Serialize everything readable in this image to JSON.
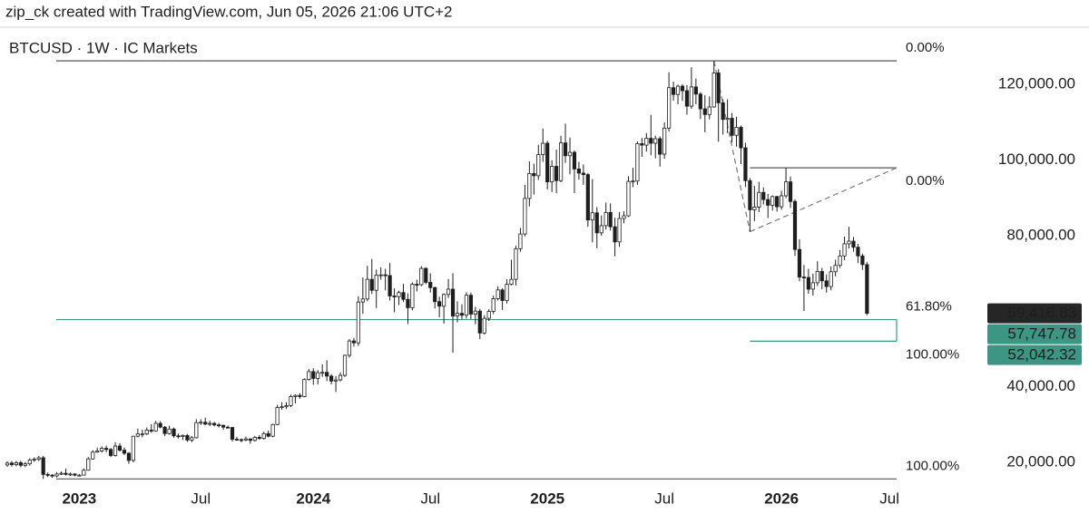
{
  "header": "zip_ck created with TradingView.com, Jun 05, 2026 21:06 UTC+2",
  "chart_data": {
    "type": "candlestick",
    "title": "BTCUSD · 1W · IC Markets",
    "categories": [
      null,
      null,
      null,
      null,
      null,
      null,
      null,
      null,
      null,
      null,
      null,
      null,
      null,
      null,
      null,
      null,
      "2023",
      null,
      null,
      null,
      null,
      null,
      null,
      null,
      null,
      null,
      null,
      null,
      null,
      null,
      null,
      null,
      null,
      null,
      null,
      null,
      null,
      null,
      null,
      null,
      null,
      null,
      null,
      "Jul",
      null,
      null,
      null,
      null,
      null,
      null,
      null,
      null,
      null,
      null,
      null,
      null,
      null,
      null,
      null,
      null,
      null,
      null,
      null,
      null,
      null,
      null,
      null,
      null,
      "2024",
      null,
      null,
      null,
      null,
      null,
      null,
      null,
      null,
      null,
      null,
      null,
      null,
      null,
      null,
      null,
      null,
      null,
      null,
      null,
      null,
      null,
      null,
      null,
      null,
      null,
      "Jul",
      null,
      null,
      null,
      null,
      null,
      null,
      null,
      null,
      null,
      null,
      null,
      null,
      null,
      null,
      null,
      null,
      null,
      null,
      null,
      null,
      null,
      null,
      null,
      null,
      null,
      "2025",
      null,
      null,
      null,
      null,
      null,
      null,
      null,
      null,
      null,
      null,
      null,
      null,
      null,
      null,
      null,
      null,
      null,
      null,
      null,
      null,
      null,
      null,
      null,
      null,
      null,
      "Jul",
      null,
      null,
      null,
      null,
      null,
      null,
      null,
      null,
      null,
      null,
      null,
      null,
      null,
      null,
      null,
      null,
      null,
      null,
      null,
      null,
      null,
      null,
      null,
      null,
      null,
      "2026",
      null,
      null,
      null,
      null,
      null,
      null,
      null,
      null,
      null,
      null,
      null,
      null,
      null,
      null,
      null,
      null,
      null,
      null,
      null,
      null,
      null,
      null,
      null,
      "Jul"
    ],
    "ohlc": [
      [
        19300,
        20300,
        18800,
        19800
      ],
      [
        19800,
        20300,
        18900,
        19400
      ],
      [
        19400,
        20400,
        18900,
        19900
      ],
      [
        19900,
        20400,
        18700,
        19200
      ],
      [
        19200,
        20100,
        18700,
        19600
      ],
      [
        19600,
        21100,
        19100,
        20600
      ],
      [
        20600,
        21300,
        20100,
        20800
      ],
      [
        20800,
        21700,
        20300,
        21200
      ],
      [
        21200,
        21700,
        15600,
        16800
      ],
      [
        16800,
        17300,
        16100,
        16600
      ],
      [
        16600,
        16900,
        15900,
        16400
      ],
      [
        16400,
        17400,
        16000,
        16900
      ],
      [
        16900,
        17600,
        16600,
        17100
      ],
      [
        17100,
        18300,
        16500,
        16800
      ],
      [
        16800,
        17300,
        16400,
        16900
      ],
      [
        16900,
        17100,
        16300,
        16600
      ],
      [
        16600,
        16900,
        16300,
        16600
      ],
      [
        16600,
        18400,
        16500,
        17900
      ],
      [
        17900,
        21400,
        17800,
        20900
      ],
      [
        20900,
        23200,
        20700,
        22700
      ],
      [
        22700,
        23900,
        22500,
        23000
      ],
      [
        23000,
        24200,
        22600,
        23700
      ],
      [
        23700,
        24400,
        22700,
        23400
      ],
      [
        23400,
        23800,
        21400,
        21800
      ],
      [
        21800,
        25300,
        21500,
        24300
      ],
      [
        24300,
        25100,
        22800,
        23200
      ],
      [
        23200,
        23900,
        21900,
        22400
      ],
      [
        22400,
        22700,
        19600,
        20500
      ],
      [
        20500,
        27000,
        20000,
        26900
      ],
      [
        26900,
        28900,
        26600,
        27500
      ],
      [
        27500,
        28600,
        26600,
        27500
      ],
      [
        27500,
        29200,
        27200,
        28500
      ],
      [
        28500,
        30100,
        27800,
        28300
      ],
      [
        28300,
        31000,
        28100,
        30300
      ],
      [
        30300,
        30900,
        29000,
        29300
      ],
      [
        29300,
        29600,
        26900,
        27600
      ],
      [
        27600,
        29700,
        27300,
        28800
      ],
      [
        28800,
        29200,
        26500,
        27000
      ],
      [
        27000,
        27600,
        26300,
        26800
      ],
      [
        26800,
        27400,
        25900,
        27100
      ],
      [
        27100,
        27500,
        25400,
        25900
      ],
      [
        25900,
        27000,
        25300,
        26500
      ],
      [
        26500,
        31400,
        26300,
        30500
      ],
      [
        30500,
        31400,
        29900,
        30600
      ],
      [
        30600,
        31800,
        29800,
        30100
      ],
      [
        30100,
        31000,
        29600,
        30300
      ],
      [
        30300,
        30700,
        29500,
        29900
      ],
      [
        29900,
        30400,
        29200,
        29800
      ],
      [
        29800,
        29900,
        28600,
        29300
      ],
      [
        29300,
        29700,
        28900,
        29200
      ],
      [
        29200,
        29400,
        25500,
        26100
      ],
      [
        26100,
        26700,
        25700,
        26000
      ],
      [
        26000,
        26300,
        25300,
        25900
      ],
      [
        25900,
        26800,
        25600,
        26200
      ],
      [
        26200,
        26300,
        24900,
        25800
      ],
      [
        25800,
        27000,
        25500,
        26600
      ],
      [
        26600,
        27200,
        26000,
        26300
      ],
      [
        26300,
        28100,
        26000,
        27600
      ],
      [
        27600,
        28400,
        26600,
        26900
      ],
      [
        26900,
        30200,
        26600,
        30000
      ],
      [
        30000,
        35200,
        29800,
        34500
      ],
      [
        34500,
        35900,
        33900,
        34700
      ],
      [
        34700,
        35900,
        34100,
        35000
      ],
      [
        35000,
        37900,
        34600,
        37400
      ],
      [
        37400,
        38000,
        35600,
        37700
      ],
      [
        37700,
        38300,
        36800,
        37400
      ],
      [
        37400,
        42200,
        37200,
        41900
      ],
      [
        41900,
        44700,
        41600,
        44000
      ],
      [
        44000,
        44900,
        40500,
        42200
      ],
      [
        42200,
        44400,
        40600,
        43700
      ],
      [
        43700,
        45900,
        42600,
        43800
      ],
      [
        43800,
        47000,
        41500,
        42800
      ],
      [
        42800,
        43300,
        40600,
        41500
      ],
      [
        41500,
        42800,
        38600,
        41800
      ],
      [
        41800,
        43800,
        41400,
        43000
      ],
      [
        43000,
        48500,
        42600,
        48300
      ],
      [
        48300,
        52600,
        47700,
        52100
      ],
      [
        52100,
        52900,
        50600,
        51600
      ],
      [
        51600,
        63900,
        50800,
        62400
      ],
      [
        62400,
        68900,
        59300,
        63200
      ],
      [
        63200,
        72000,
        62600,
        68400
      ],
      [
        68400,
        73800,
        64500,
        65500
      ],
      [
        65500,
        71000,
        60800,
        69500
      ],
      [
        69500,
        71600,
        68300,
        69600
      ],
      [
        69600,
        71200,
        65500,
        69400
      ],
      [
        69400,
        72700,
        62800,
        64000
      ],
      [
        64000,
        66000,
        59700,
        63800
      ],
      [
        63800,
        65400,
        61600,
        64900
      ],
      [
        64900,
        67200,
        62400,
        63100
      ],
      [
        63100,
        64700,
        56600,
        60900
      ],
      [
        60900,
        67600,
        60200,
        67100
      ],
      [
        67100,
        68300,
        65200,
        67000
      ],
      [
        67000,
        71900,
        66600,
        71300
      ],
      [
        71300,
        71600,
        67100,
        67600
      ],
      [
        67600,
        70000,
        64900,
        66200
      ],
      [
        66200,
        66500,
        60700,
        62500
      ],
      [
        62500,
        63800,
        58400,
        61300
      ],
      [
        61300,
        64700,
        56700,
        64400
      ],
      [
        64400,
        68500,
        63500,
        65800
      ],
      [
        65800,
        70000,
        49000,
        58700
      ],
      [
        58700,
        62600,
        57000,
        59400
      ],
      [
        59400,
        61800,
        57800,
        58900
      ],
      [
        58900,
        65000,
        58000,
        64200
      ],
      [
        64200,
        64900,
        57900,
        59200
      ],
      [
        59200,
        61100,
        56500,
        60000
      ],
      [
        60000,
        60600,
        52600,
        54200
      ],
      [
        54200,
        58900,
        53800,
        58100
      ],
      [
        58100,
        60500,
        57400,
        59900
      ],
      [
        59900,
        64100,
        59200,
        63300
      ],
      [
        63300,
        66500,
        62800,
        65600
      ],
      [
        65600,
        66000,
        60300,
        62800
      ],
      [
        62800,
        68400,
        62000,
        67100
      ],
      [
        67100,
        73600,
        66800,
        68400
      ],
      [
        68400,
        77300,
        66800,
        76500
      ],
      [
        76500,
        82000,
        75700,
        80400
      ],
      [
        80400,
        93400,
        79800,
        89800
      ],
      [
        89800,
        99600,
        87700,
        96400
      ],
      [
        96400,
        99000,
        90800,
        95800
      ],
      [
        95800,
        104000,
        94700,
        101400
      ],
      [
        101400,
        108300,
        99500,
        104400
      ],
      [
        104400,
        105000,
        92200,
        94200
      ],
      [
        94200,
        99900,
        91500,
        98300
      ],
      [
        98300,
        102700,
        91200,
        94500
      ],
      [
        94500,
        106400,
        94100,
        104500
      ],
      [
        104500,
        109600,
        99200,
        101100
      ],
      [
        101100,
        105900,
        96200,
        102000
      ],
      [
        102000,
        102500,
        91200,
        97600
      ],
      [
        97600,
        99500,
        94800,
        96500
      ],
      [
        96500,
        98800,
        93400,
        96100
      ],
      [
        96100,
        96500,
        82300,
        84100
      ],
      [
        84100,
        94900,
        78200,
        86000
      ],
      [
        86000,
        87500,
        76600,
        80700
      ],
      [
        80700,
        85300,
        79900,
        82600
      ],
      [
        82600,
        88700,
        81600,
        86100
      ],
      [
        86100,
        88500,
        81300,
        82300
      ],
      [
        82300,
        84700,
        74500,
        78300
      ],
      [
        78300,
        86200,
        77000,
        84500
      ],
      [
        84500,
        86400,
        83200,
        85200
      ],
      [
        85200,
        95700,
        84900,
        94300
      ],
      [
        94300,
        97900,
        92800,
        94400
      ],
      [
        94400,
        104900,
        93400,
        104300
      ],
      [
        104300,
        105800,
        100800,
        103900
      ],
      [
        103900,
        107100,
        102200,
        105700
      ],
      [
        105700,
        111900,
        101200,
        104400
      ],
      [
        104400,
        106400,
        100400,
        105600
      ],
      [
        105600,
        106200,
        98200,
        101500
      ],
      [
        101500,
        109900,
        100300,
        108400
      ],
      [
        108400,
        123200,
        107500,
        119100
      ],
      [
        119100,
        120700,
        115700,
        117300
      ],
      [
        117300,
        119900,
        114700,
        119500
      ],
      [
        119500,
        120000,
        115600,
        118300
      ],
      [
        118300,
        119800,
        112000,
        114200
      ],
      [
        114200,
        124500,
        113500,
        119300
      ],
      [
        119300,
        121500,
        114700,
        117400
      ],
      [
        117400,
        117900,
        110800,
        113500
      ],
      [
        113500,
        117100,
        107300,
        112000
      ],
      [
        112000,
        116800,
        110700,
        114000
      ],
      [
        114000,
        126200,
        113800,
        123000
      ],
      [
        123000,
        124000,
        104800,
        115100
      ],
      [
        115100,
        116000,
        106700,
        110700
      ],
      [
        110700,
        116000,
        107100,
        111000
      ],
      [
        111000,
        112400,
        104600,
        106500
      ],
      [
        106500,
        111400,
        103500,
        108600
      ],
      [
        108600,
        109100,
        98900,
        103200
      ],
      [
        103200,
        104500,
        92800,
        94500
      ],
      [
        94500,
        95200,
        81000,
        86800
      ],
      [
        86800,
        93100,
        83800,
        87500
      ],
      [
        87500,
        94200,
        86200,
        91400
      ],
      [
        91400,
        92700,
        88200,
        89500
      ],
      [
        89500,
        91000,
        84600,
        88000
      ],
      [
        88000,
        90600,
        86600,
        90300
      ],
      [
        90300,
        90500,
        86300,
        87600
      ],
      [
        87600,
        91800,
        86800,
        90500
      ],
      [
        90500,
        97900,
        89900,
        94200
      ],
      [
        94200,
        95600,
        87300,
        89000
      ],
      [
        89000,
        89600,
        74600,
        76300
      ],
      [
        76300,
        79000,
        67900,
        69000
      ],
      [
        69000,
        72200,
        60000,
        68900
      ],
      [
        68900,
        71200,
        64600,
        65800
      ],
      [
        65800,
        69900,
        64100,
        67500
      ],
      [
        67500,
        73200,
        66600,
        70500
      ],
      [
        70500,
        71400,
        65800,
        68000
      ],
      [
        68000,
        69700,
        64900,
        66500
      ],
      [
        66500,
        71800,
        65500,
        70400
      ],
      [
        70400,
        73600,
        69200,
        72100
      ],
      [
        72100,
        76100,
        71400,
        74600
      ],
      [
        74600,
        79700,
        73500,
        77800
      ],
      [
        77800,
        82300,
        76600,
        78500
      ],
      [
        78500,
        79600,
        75700,
        76900
      ],
      [
        76900,
        77800,
        72700,
        74600
      ],
      [
        74600,
        75200,
        70900,
        72300
      ],
      [
        72300,
        73000,
        58900,
        59416.83
      ],
      null,
      null,
      null,
      null,
      null
    ],
    "up_color": "#ffffff",
    "down_color": "#1e1e1e",
    "ylim": [
      12800,
      133900
    ],
    "yticks": [
      {
        "value": 20000,
        "label": "20,000.00"
      },
      {
        "value": 40000,
        "label": "40,000.00"
      },
      {
        "value": 80000,
        "label": "80,000.00"
      },
      {
        "value": 100000,
        "label": "100,000.00"
      },
      {
        "value": 120000,
        "label": "120,000.00"
      }
    ],
    "price_labels": [
      {
        "value": 59416.83,
        "label": "59,416.83",
        "color": "#262626"
      },
      {
        "value": 57747.78,
        "label": "57,747.78",
        "color": "#3c9683"
      },
      {
        "value": 52042.32,
        "label": "52,042.32",
        "color": "#3c9683"
      }
    ],
    "fibs": [
      {
        "levels": [
          {
            "value": 126200,
            "label": "0.00%",
            "color": "#555555"
          },
          {
            "value": 57747.78,
            "label": "61.80%",
            "color": "#3c9683"
          },
          {
            "value": 15600,
            "label": "100.00%",
            "color": "#555555"
          }
        ]
      },
      {
        "levels": [
          {
            "value": 97900,
            "label": "0.00%",
            "color": "#555555"
          },
          {
            "value": 52042.32,
            "label": "100.00%",
            "color": "#3c9683"
          }
        ]
      }
    ],
    "trend_points": [
      126200,
      81000,
      97900
    ]
  }
}
